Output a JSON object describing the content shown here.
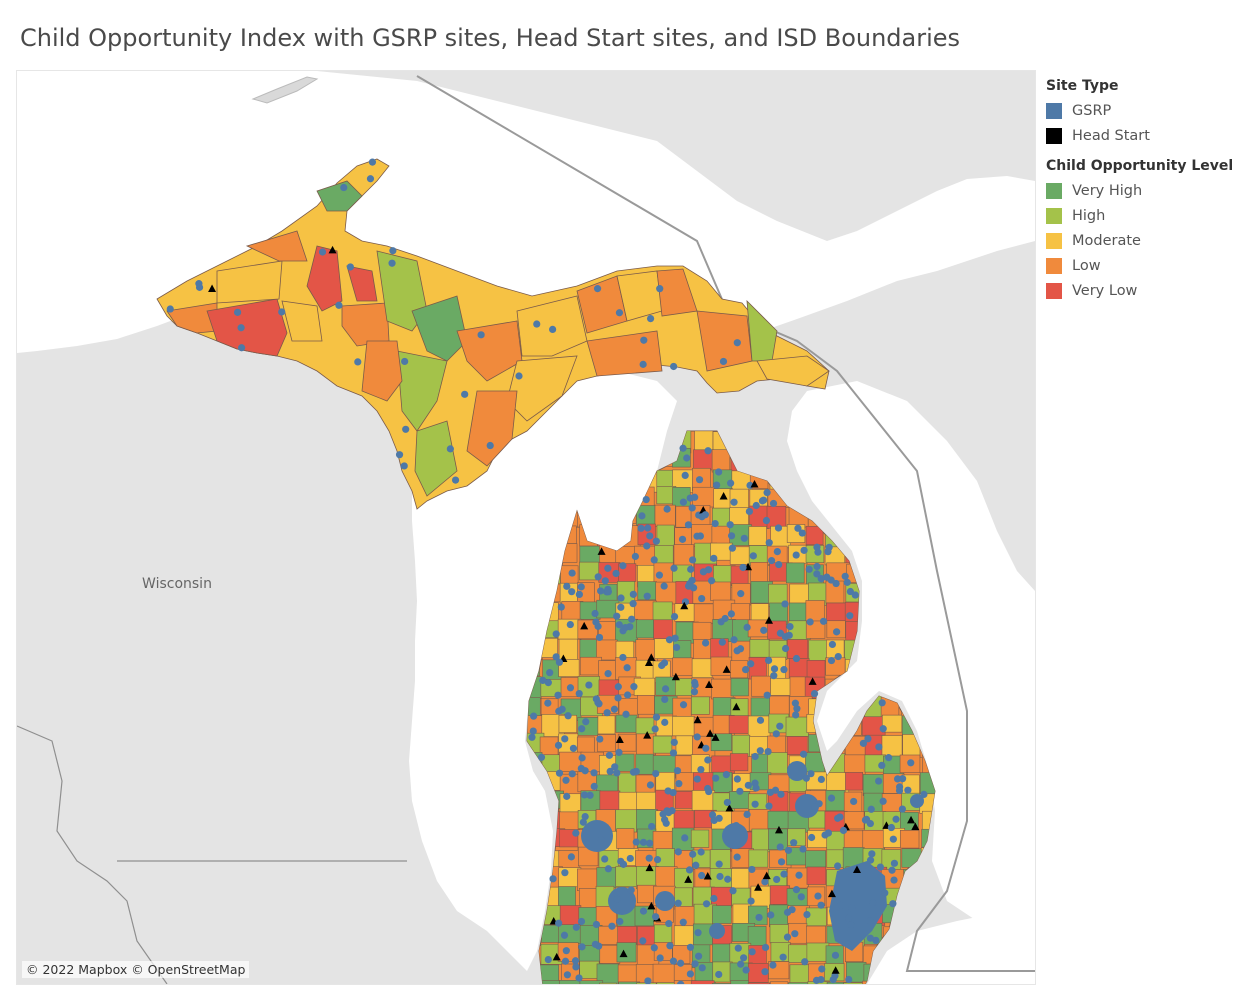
{
  "title": "Child Opportunity Index with GSRP sites, Head Start sites, and ISD Boundaries",
  "map": {
    "label_wisconsin": "Wisconsin",
    "attribution": "© 2022 Mapbox © OpenStreetMap",
    "colors": {
      "water": "#ffffff",
      "land": "#e4e4e4",
      "border": "#9a9a9a",
      "district_outline": "#7a5a4a"
    }
  },
  "legend": {
    "site_type": {
      "title": "Site Type",
      "items": [
        {
          "label": "GSRP",
          "color": "#4e79a7"
        },
        {
          "label": "Head Start",
          "color": "#000000"
        }
      ]
    },
    "opportunity": {
      "title": "Child Opportunity Level",
      "items": [
        {
          "label": "Very High",
          "color": "#6aaa64"
        },
        {
          "label": "High",
          "color": "#a4c24a"
        },
        {
          "label": "Moderate",
          "color": "#f6c244"
        },
        {
          "label": "Low",
          "color": "#f08a3c"
        },
        {
          "label": "Very Low",
          "color": "#e35547"
        }
      ]
    }
  }
}
